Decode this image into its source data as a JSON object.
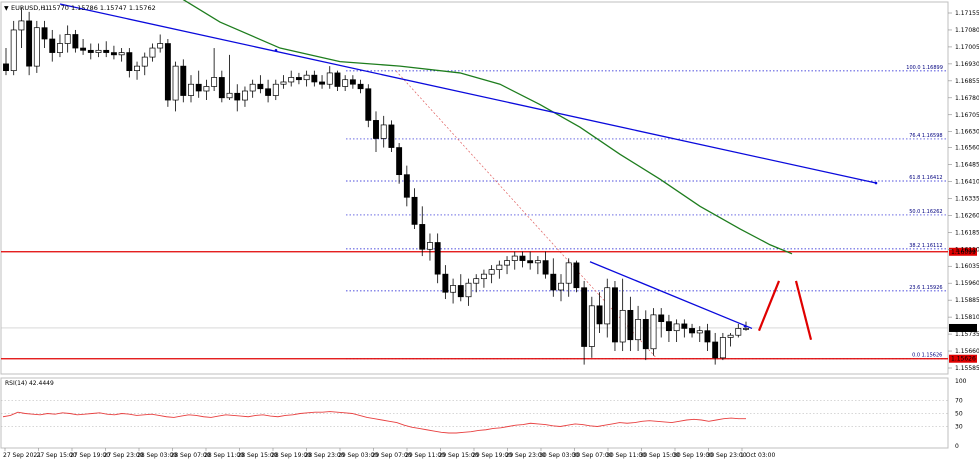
{
  "chart_data": {
    "type": "candlestick",
    "title": "EURUSD,H1",
    "ohlc_header": "1.15770 1.15786 1.15747 1.15762",
    "price_axis": {
      "labels": [
        "1.17155",
        "1.17080",
        "1.17005",
        "1.16930",
        "1.16855",
        "1.16780",
        "1.16705",
        "1.16630",
        "1.16560",
        "1.16485",
        "1.16410",
        "1.16335",
        "1.16260",
        "1.16185",
        "1.16110",
        "1.16035",
        "1.15960",
        "1.15885",
        "1.15810",
        "1.15735",
        "1.15660",
        "1.15585"
      ],
      "ylim": [
        1.15565,
        1.1724
      ]
    },
    "time_axis": [
      "27 Sep 2021",
      "27 Sep 15:00",
      "27 Sep 19:00",
      "27 Sep 23:00",
      "28 Sep 03:00",
      "28 Sep 07:00",
      "28 Sep 11:00",
      "28 Sep 15:00",
      "28 Sep 19:00",
      "28 Sep 23:00",
      "29 Sep 03:00",
      "29 Sep 07:00",
      "29 Sep 11:00",
      "29 Sep 15:00",
      "29 Sep 19:00",
      "29 Sep 23:00",
      "30 Sep 03:00",
      "30 Sep 07:00",
      "30 Sep 11:00",
      "30 Sep 15:00",
      "30 Sep 19:00",
      "30 Sep 23:00",
      "1 Oct 03:00"
    ],
    "candles": [
      [
        1.1693,
        1.17,
        1.1688,
        1.169
      ],
      [
        1.169,
        1.1712,
        1.1688,
        1.1708
      ],
      [
        1.1708,
        1.1718,
        1.17,
        1.1712
      ],
      [
        1.1712,
        1.1716,
        1.1688,
        1.1692
      ],
      [
        1.1692,
        1.1712,
        1.1689,
        1.1709
      ],
      [
        1.1709,
        1.1712,
        1.17,
        1.1704
      ],
      [
        1.1704,
        1.1708,
        1.1694,
        1.1698
      ],
      [
        1.1698,
        1.1706,
        1.1696,
        1.1702
      ],
      [
        1.1702,
        1.171,
        1.1698,
        1.1706
      ],
      [
        1.1706,
        1.1708,
        1.1698,
        1.17
      ],
      [
        1.17,
        1.1704,
        1.1697,
        1.1699
      ],
      [
        1.1699,
        1.1702,
        1.1695,
        1.1698
      ],
      [
        1.1698,
        1.1702,
        1.1696,
        1.1699
      ],
      [
        1.1699,
        1.1703,
        1.1696,
        1.1698
      ],
      [
        1.1698,
        1.1701,
        1.1695,
        1.1697
      ],
      [
        1.1697,
        1.17,
        1.1694,
        1.1698
      ],
      [
        1.1698,
        1.17,
        1.1687,
        1.169
      ],
      [
        1.169,
        1.1694,
        1.1686,
        1.1692
      ],
      [
        1.1692,
        1.1698,
        1.1688,
        1.1696
      ],
      [
        1.1696,
        1.1702,
        1.1694,
        1.17
      ],
      [
        1.17,
        1.1706,
        1.1698,
        1.1702
      ],
      [
        1.1702,
        1.1704,
        1.1674,
        1.1677
      ],
      [
        1.1677,
        1.1694,
        1.1672,
        1.1692
      ],
      [
        1.1692,
        1.1695,
        1.1676,
        1.1679
      ],
      [
        1.1679,
        1.1688,
        1.1676,
        1.1684
      ],
      [
        1.1684,
        1.169,
        1.1678,
        1.1681
      ],
      [
        1.1681,
        1.1686,
        1.1677,
        1.1683
      ],
      [
        1.1683,
        1.17,
        1.1681,
        1.1687
      ],
      [
        1.1687,
        1.169,
        1.1676,
        1.1678
      ],
      [
        1.1678,
        1.1697,
        1.1677,
        1.168
      ],
      [
        1.168,
        1.1684,
        1.1672,
        1.1677
      ],
      [
        1.1677,
        1.1683,
        1.1674,
        1.1681
      ],
      [
        1.1681,
        1.1686,
        1.1678,
        1.1684
      ],
      [
        1.1684,
        1.1688,
        1.168,
        1.1682
      ],
      [
        1.1682,
        1.1686,
        1.1676,
        1.1679
      ],
      [
        1.1679,
        1.1686,
        1.1677,
        1.1684
      ],
      [
        1.1684,
        1.1688,
        1.1682,
        1.1685
      ],
      [
        1.1685,
        1.169,
        1.1683,
        1.1687
      ],
      [
        1.1687,
        1.1689,
        1.1684,
        1.1686
      ],
      [
        1.1686,
        1.169,
        1.1683,
        1.1688
      ],
      [
        1.1688,
        1.169,
        1.1683,
        1.1685
      ],
      [
        1.1685,
        1.1688,
        1.1682,
        1.1684
      ],
      [
        1.1684,
        1.1692,
        1.1682,
        1.1689
      ],
      [
        1.1689,
        1.169,
        1.1681,
        1.1683
      ],
      [
        1.1683,
        1.1688,
        1.1681,
        1.1686
      ],
      [
        1.1686,
        1.1688,
        1.1682,
        1.1684
      ],
      [
        1.1684,
        1.1686,
        1.168,
        1.1682
      ],
      [
        1.1682,
        1.1684,
        1.1665,
        1.1668
      ],
      [
        1.1668,
        1.1672,
        1.1654,
        1.166
      ],
      [
        1.166,
        1.167,
        1.1656,
        1.1666
      ],
      [
        1.1666,
        1.1668,
        1.1654,
        1.1656
      ],
      [
        1.1656,
        1.1658,
        1.164,
        1.1644
      ],
      [
        1.1644,
        1.1648,
        1.163,
        1.1634
      ],
      [
        1.1634,
        1.1638,
        1.162,
        1.1622
      ],
      [
        1.1622,
        1.163,
        1.1608,
        1.1611
      ],
      [
        1.1611,
        1.1618,
        1.1606,
        1.1614
      ],
      [
        1.1614,
        1.1618,
        1.1596,
        1.16
      ],
      [
        1.16,
        1.1604,
        1.1589,
        1.1592
      ],
      [
        1.1592,
        1.1598,
        1.1587,
        1.1595
      ],
      [
        1.1595,
        1.16,
        1.1588,
        1.159
      ],
      [
        1.159,
        1.1598,
        1.1586,
        1.1596
      ],
      [
        1.1596,
        1.16,
        1.1592,
        1.1598
      ],
      [
        1.1598,
        1.1602,
        1.1594,
        1.16
      ],
      [
        1.16,
        1.1604,
        1.1596,
        1.1602
      ],
      [
        1.1602,
        1.1606,
        1.1598,
        1.1604
      ],
      [
        1.1604,
        1.1608,
        1.16,
        1.1606
      ],
      [
        1.1606,
        1.161,
        1.1602,
        1.1608
      ],
      [
        1.1608,
        1.161,
        1.1603,
        1.1606
      ],
      [
        1.1606,
        1.161,
        1.1602,
        1.1605
      ],
      [
        1.1605,
        1.1608,
        1.16,
        1.1606
      ],
      [
        1.1606,
        1.161,
        1.1598,
        1.16
      ],
      [
        1.16,
        1.1607,
        1.159,
        1.1593
      ],
      [
        1.1593,
        1.16,
        1.1588,
        1.1596
      ],
      [
        1.1596,
        1.1607,
        1.159,
        1.1605
      ],
      [
        1.1605,
        1.1606,
        1.1592,
        1.1594
      ],
      [
        1.1594,
        1.1597,
        1.156,
        1.1568
      ],
      [
        1.1568,
        1.159,
        1.1563,
        1.1586
      ],
      [
        1.1586,
        1.1592,
        1.1574,
        1.1578
      ],
      [
        1.1578,
        1.1598,
        1.1572,
        1.1594
      ],
      [
        1.1594,
        1.1597,
        1.1566,
        1.157
      ],
      [
        1.157,
        1.1598,
        1.1566,
        1.1584
      ],
      [
        1.1584,
        1.159,
        1.1566,
        1.1571
      ],
      [
        1.1571,
        1.1586,
        1.1566,
        1.158
      ],
      [
        1.158,
        1.1584,
        1.1562,
        1.1567
      ],
      [
        1.1567,
        1.1585,
        1.1564,
        1.1582
      ],
      [
        1.1582,
        1.1585,
        1.1572,
        1.1579
      ],
      [
        1.1579,
        1.1582,
        1.157,
        1.1575
      ],
      [
        1.1575,
        1.158,
        1.157,
        1.1578
      ],
      [
        1.1578,
        1.158,
        1.1572,
        1.1576
      ],
      [
        1.1576,
        1.1578,
        1.1572,
        1.1574
      ],
      [
        1.1574,
        1.1577,
        1.157,
        1.1575
      ],
      [
        1.1575,
        1.1578,
        1.1566,
        1.157
      ],
      [
        1.157,
        1.1574,
        1.156,
        1.1563
      ],
      [
        1.1563,
        1.1574,
        1.1562,
        1.1572
      ],
      [
        1.1572,
        1.1574,
        1.1568,
        1.1573
      ],
      [
        1.1573,
        1.1578,
        1.1572,
        1.1576
      ],
      [
        1.1576,
        1.1579,
        1.1575,
        1.1576
      ]
    ],
    "last_price": "1.15762",
    "horizontal_levels": [
      {
        "label": "1.16099",
        "color": "#e00000"
      },
      {
        "label": "1.15626",
        "color": "#e00000"
      }
    ],
    "fibonacci": [
      {
        "label": "100.0 1.16899",
        "value": 1.16899
      },
      {
        "label": "76.4 1.16598",
        "value": 1.16598
      },
      {
        "label": "61.8 1.16412",
        "value": 1.16412
      },
      {
        "label": "50.0 1.16262",
        "value": 1.16262
      },
      {
        "label": "38.2 1.16112",
        "value": 1.16112
      },
      {
        "label": "23.6 1.15926",
        "value": 1.15926
      },
      {
        "label": "0.0 1.15626",
        "value": 1.15626
      }
    ],
    "rsi": {
      "label": "RSI(14) 42.4449",
      "ticks": [
        "100",
        "70",
        "50",
        "30",
        "0"
      ],
      "values": [
        45,
        47,
        52,
        50,
        49,
        48,
        50,
        49,
        51,
        50,
        48,
        49,
        50,
        51,
        49,
        48,
        50,
        49,
        47,
        48,
        49,
        47,
        45,
        44,
        46,
        48,
        47,
        45,
        44,
        46,
        48,
        47,
        46,
        45,
        47,
        48,
        46,
        45,
        47,
        48,
        50,
        51,
        52,
        52,
        53,
        52,
        51,
        50,
        47,
        44,
        42,
        40,
        38,
        36,
        32,
        29,
        27,
        25,
        23,
        21,
        20,
        20,
        21,
        22,
        24,
        25,
        27,
        28,
        30,
        32,
        33,
        35,
        34,
        33,
        31,
        30,
        32,
        34,
        33,
        31,
        30,
        32,
        34,
        36,
        35,
        36,
        38,
        39,
        38,
        37,
        36,
        38,
        40,
        41,
        40,
        38,
        40,
        42,
        43,
        42,
        42
      ]
    },
    "colors": {
      "bull_body": "#ffffff",
      "bear_body": "#000000",
      "moving_average": "#1e7d1e",
      "trend_line": "#0a0adc",
      "support_resistance": "#e00000",
      "fib_level": "#1414d2",
      "rsi_line": "#e84040",
      "forecast": "#e00000"
    }
  }
}
